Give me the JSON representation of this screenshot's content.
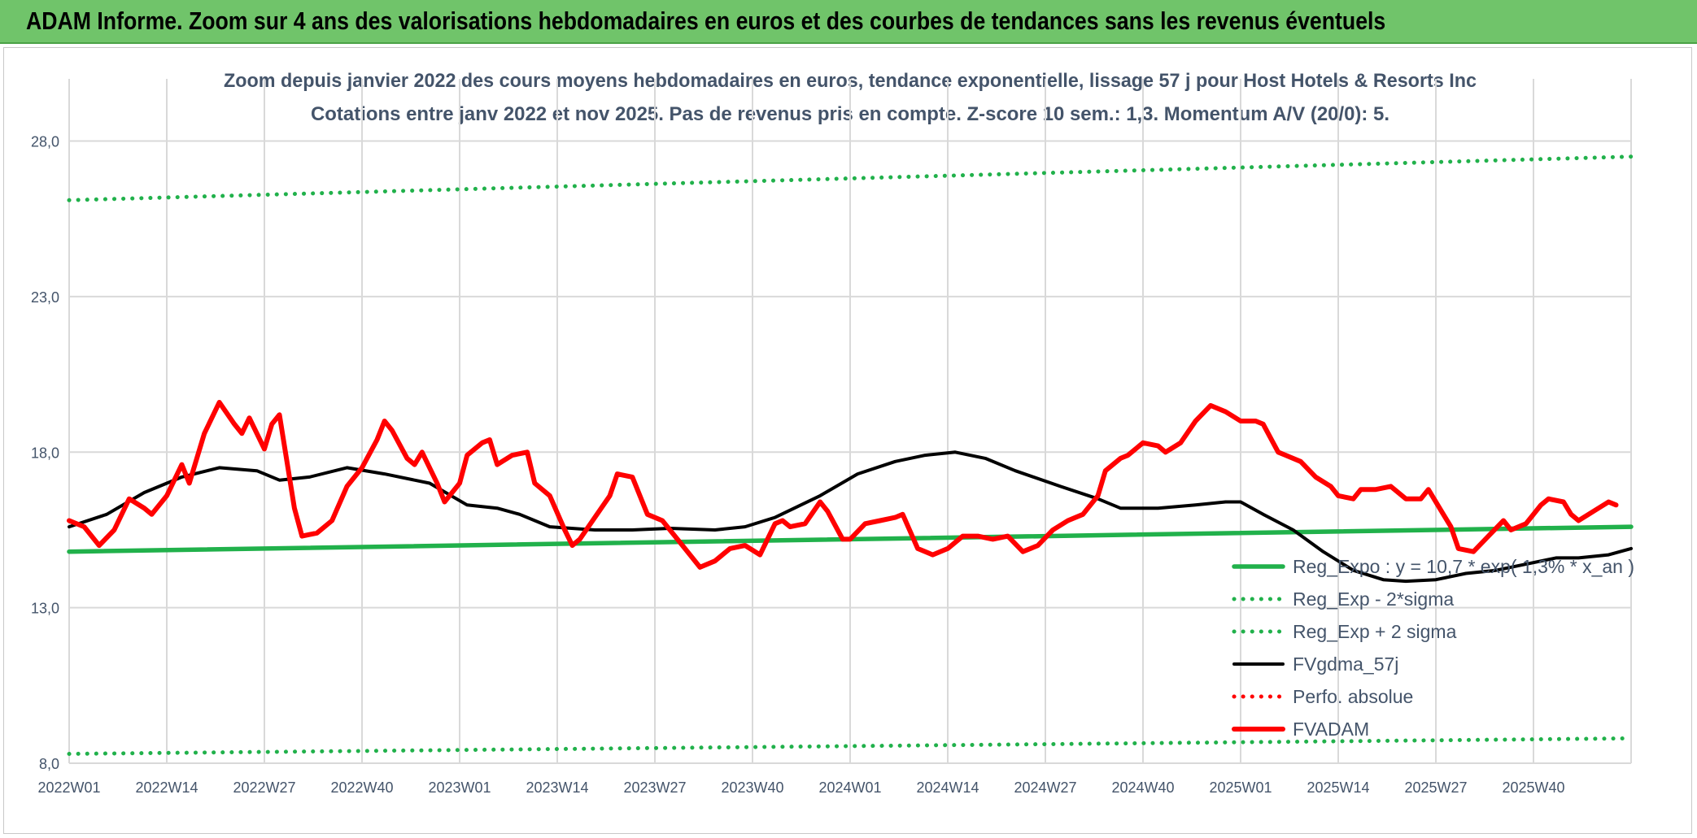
{
  "banner": {
    "title": "ADAM Informe. Zoom sur 4 ans des valorisations hebdomadaires en euros et des courbes de tendances sans les revenus éventuels"
  },
  "chart_data": {
    "type": "line",
    "title": "Zoom depuis janvier 2022 des cours moyens hebdomadaires en euros, tendance exponentielle, lissage 57 j pour Host Hotels & Resorts Inc",
    "subtitle": "Cotations entre janv 2022 et nov 2025. Pas de revenus pris en compte. Z-score 10 sem.: 1,3. Momentum A/V (20/0): 5.",
    "xlabel": "",
    "ylabel": "",
    "ylim": [
      8.0,
      30.0
    ],
    "y_ticks": [
      "8,0",
      "13,0",
      "18,0",
      "23,0",
      "28,0"
    ],
    "y_tick_values": [
      8,
      13,
      18,
      23,
      28
    ],
    "x_ticks": [
      "2022W01",
      "2022W14",
      "2022W27",
      "2022W40",
      "2023W01",
      "2023W14",
      "2023W27",
      "2023W40",
      "2024W01",
      "2024W14",
      "2024W27",
      "2024W40",
      "2025W01",
      "2025W14",
      "2025W27",
      "2025W40"
    ],
    "x_tick_index": [
      0,
      13,
      26,
      39,
      52,
      65,
      78,
      91,
      104,
      117,
      130,
      143,
      156,
      169,
      182,
      195
    ],
    "n_weeks": 209,
    "grid": true,
    "legend_position": "bottom-right",
    "series": [
      {
        "name": "Reg_Expo : y = 10,7 * exp( 1,3% * x_an )",
        "style": "solid",
        "color": "#21b14b",
        "anchors": [
          [
            0,
            14.8
          ],
          [
            208,
            15.6
          ]
        ]
      },
      {
        "name": "Reg_Exp - 2*sigma",
        "style": "dotted",
        "color": "#21b14b",
        "anchors": [
          [
            0,
            8.3
          ],
          [
            208,
            8.8
          ]
        ]
      },
      {
        "name": "Reg_Exp + 2 sigma",
        "style": "dotted",
        "color": "#21b14b",
        "anchors": [
          [
            0,
            26.1
          ],
          [
            208,
            27.5
          ]
        ]
      },
      {
        "name": "FVgdma_57j",
        "style": "solid",
        "color": "#000000",
        "anchors": [
          [
            0,
            15.6
          ],
          [
            5,
            16.0
          ],
          [
            10,
            16.7
          ],
          [
            15,
            17.2
          ],
          [
            20,
            17.5
          ],
          [
            25,
            17.4
          ],
          [
            28,
            17.1
          ],
          [
            32,
            17.2
          ],
          [
            37,
            17.5
          ],
          [
            42,
            17.3
          ],
          [
            48,
            17.0
          ],
          [
            53,
            16.3
          ],
          [
            57,
            16.2
          ],
          [
            60,
            16.0
          ],
          [
            64,
            15.6
          ],
          [
            70,
            15.5
          ],
          [
            75,
            15.5
          ],
          [
            80,
            15.55
          ],
          [
            86,
            15.5
          ],
          [
            90,
            15.6
          ],
          [
            94,
            15.9
          ],
          [
            100,
            16.6
          ],
          [
            105,
            17.3
          ],
          [
            110,
            17.7
          ],
          [
            114,
            17.9
          ],
          [
            118,
            18.0
          ],
          [
            122,
            17.8
          ],
          [
            126,
            17.4
          ],
          [
            132,
            16.9
          ],
          [
            137,
            16.5
          ],
          [
            140,
            16.2
          ],
          [
            145,
            16.2
          ],
          [
            150,
            16.3
          ],
          [
            154,
            16.4
          ],
          [
            156,
            16.4
          ],
          [
            159,
            16.0
          ],
          [
            163,
            15.5
          ],
          [
            167,
            14.8
          ],
          [
            171,
            14.2
          ],
          [
            175,
            13.9
          ],
          [
            178,
            13.85
          ],
          [
            182,
            13.9
          ],
          [
            186,
            14.1
          ],
          [
            190,
            14.2
          ],
          [
            194,
            14.4
          ],
          [
            198,
            14.6
          ],
          [
            201,
            14.6
          ],
          [
            205,
            14.7
          ],
          [
            208,
            14.9
          ]
        ]
      },
      {
        "name": "Perfo. absolue",
        "style": "dotted",
        "color": "#ff0000",
        "anchors": []
      },
      {
        "name": "FVADAM",
        "style": "solid",
        "color": "#ff0000",
        "anchors": [
          [
            0,
            15.8
          ],
          [
            2,
            15.6
          ],
          [
            4,
            15.0
          ],
          [
            6,
            15.5
          ],
          [
            8,
            16.5
          ],
          [
            10,
            16.2
          ],
          [
            11,
            16.0
          ],
          [
            13,
            16.6
          ],
          [
            15,
            17.6
          ],
          [
            16,
            17.0
          ],
          [
            18,
            18.6
          ],
          [
            20,
            19.6
          ],
          [
            22,
            18.9
          ],
          [
            23,
            18.6
          ],
          [
            24,
            19.1
          ],
          [
            26,
            18.1
          ],
          [
            27,
            18.9
          ],
          [
            28,
            19.2
          ],
          [
            30,
            16.2
          ],
          [
            31,
            15.3
          ],
          [
            33,
            15.4
          ],
          [
            35,
            15.8
          ],
          [
            37,
            16.9
          ],
          [
            39,
            17.5
          ],
          [
            41,
            18.4
          ],
          [
            42,
            19.0
          ],
          [
            43,
            18.7
          ],
          [
            45,
            17.8
          ],
          [
            46,
            17.6
          ],
          [
            47,
            18.0
          ],
          [
            49,
            17.0
          ],
          [
            50,
            16.4
          ],
          [
            52,
            17.0
          ],
          [
            53,
            17.9
          ],
          [
            55,
            18.3
          ],
          [
            56,
            18.4
          ],
          [
            57,
            17.6
          ],
          [
            59,
            17.9
          ],
          [
            61,
            18.0
          ],
          [
            62,
            17.0
          ],
          [
            64,
            16.6
          ],
          [
            66,
            15.5
          ],
          [
            67,
            15.0
          ],
          [
            68,
            15.2
          ],
          [
            70,
            15.9
          ],
          [
            72,
            16.6
          ],
          [
            73,
            17.3
          ],
          [
            75,
            17.2
          ],
          [
            77,
            16.0
          ],
          [
            79,
            15.8
          ],
          [
            81,
            15.2
          ],
          [
            83,
            14.6
          ],
          [
            84,
            14.3
          ],
          [
            86,
            14.5
          ],
          [
            88,
            14.9
          ],
          [
            90,
            15.0
          ],
          [
            92,
            14.7
          ],
          [
            94,
            15.7
          ],
          [
            95,
            15.8
          ],
          [
            96,
            15.6
          ],
          [
            98,
            15.7
          ],
          [
            100,
            16.4
          ],
          [
            101,
            16.1
          ],
          [
            103,
            15.2
          ],
          [
            104,
            15.2
          ],
          [
            106,
            15.7
          ],
          [
            108,
            15.8
          ],
          [
            110,
            15.9
          ],
          [
            111,
            16.0
          ],
          [
            113,
            14.9
          ],
          [
            115,
            14.7
          ],
          [
            117,
            14.9
          ],
          [
            119,
            15.3
          ],
          [
            121,
            15.3
          ],
          [
            123,
            15.2
          ],
          [
            125,
            15.3
          ],
          [
            127,
            14.8
          ],
          [
            129,
            15.0
          ],
          [
            131,
            15.5
          ],
          [
            133,
            15.8
          ],
          [
            135,
            16.0
          ],
          [
            137,
            16.6
          ],
          [
            138,
            17.4
          ],
          [
            140,
            17.8
          ],
          [
            141,
            17.9
          ],
          [
            143,
            18.3
          ],
          [
            145,
            18.2
          ],
          [
            146,
            18.0
          ],
          [
            148,
            18.3
          ],
          [
            150,
            19.0
          ],
          [
            152,
            19.5
          ],
          [
            154,
            19.3
          ],
          [
            156,
            19.0
          ],
          [
            158,
            19.0
          ],
          [
            159,
            18.9
          ],
          [
            161,
            18.0
          ],
          [
            162,
            17.9
          ],
          [
            164,
            17.7
          ],
          [
            166,
            17.2
          ],
          [
            168,
            16.9
          ],
          [
            169,
            16.6
          ],
          [
            171,
            16.5
          ],
          [
            172,
            16.8
          ],
          [
            174,
            16.8
          ],
          [
            176,
            16.9
          ],
          [
            178,
            16.5
          ],
          [
            180,
            16.5
          ],
          [
            181,
            16.8
          ],
          [
            183,
            16.0
          ],
          [
            184,
            15.6
          ],
          [
            185,
            14.9
          ],
          [
            187,
            14.8
          ],
          [
            189,
            15.3
          ],
          [
            191,
            15.8
          ],
          [
            192,
            15.5
          ],
          [
            194,
            15.7
          ],
          [
            196,
            16.3
          ],
          [
            197,
            16.5
          ],
          [
            199,
            16.4
          ],
          [
            200,
            16.0
          ],
          [
            201,
            15.8
          ],
          [
            203,
            16.1
          ],
          [
            205,
            16.4
          ],
          [
            206,
            16.3
          ]
        ]
      }
    ]
  }
}
